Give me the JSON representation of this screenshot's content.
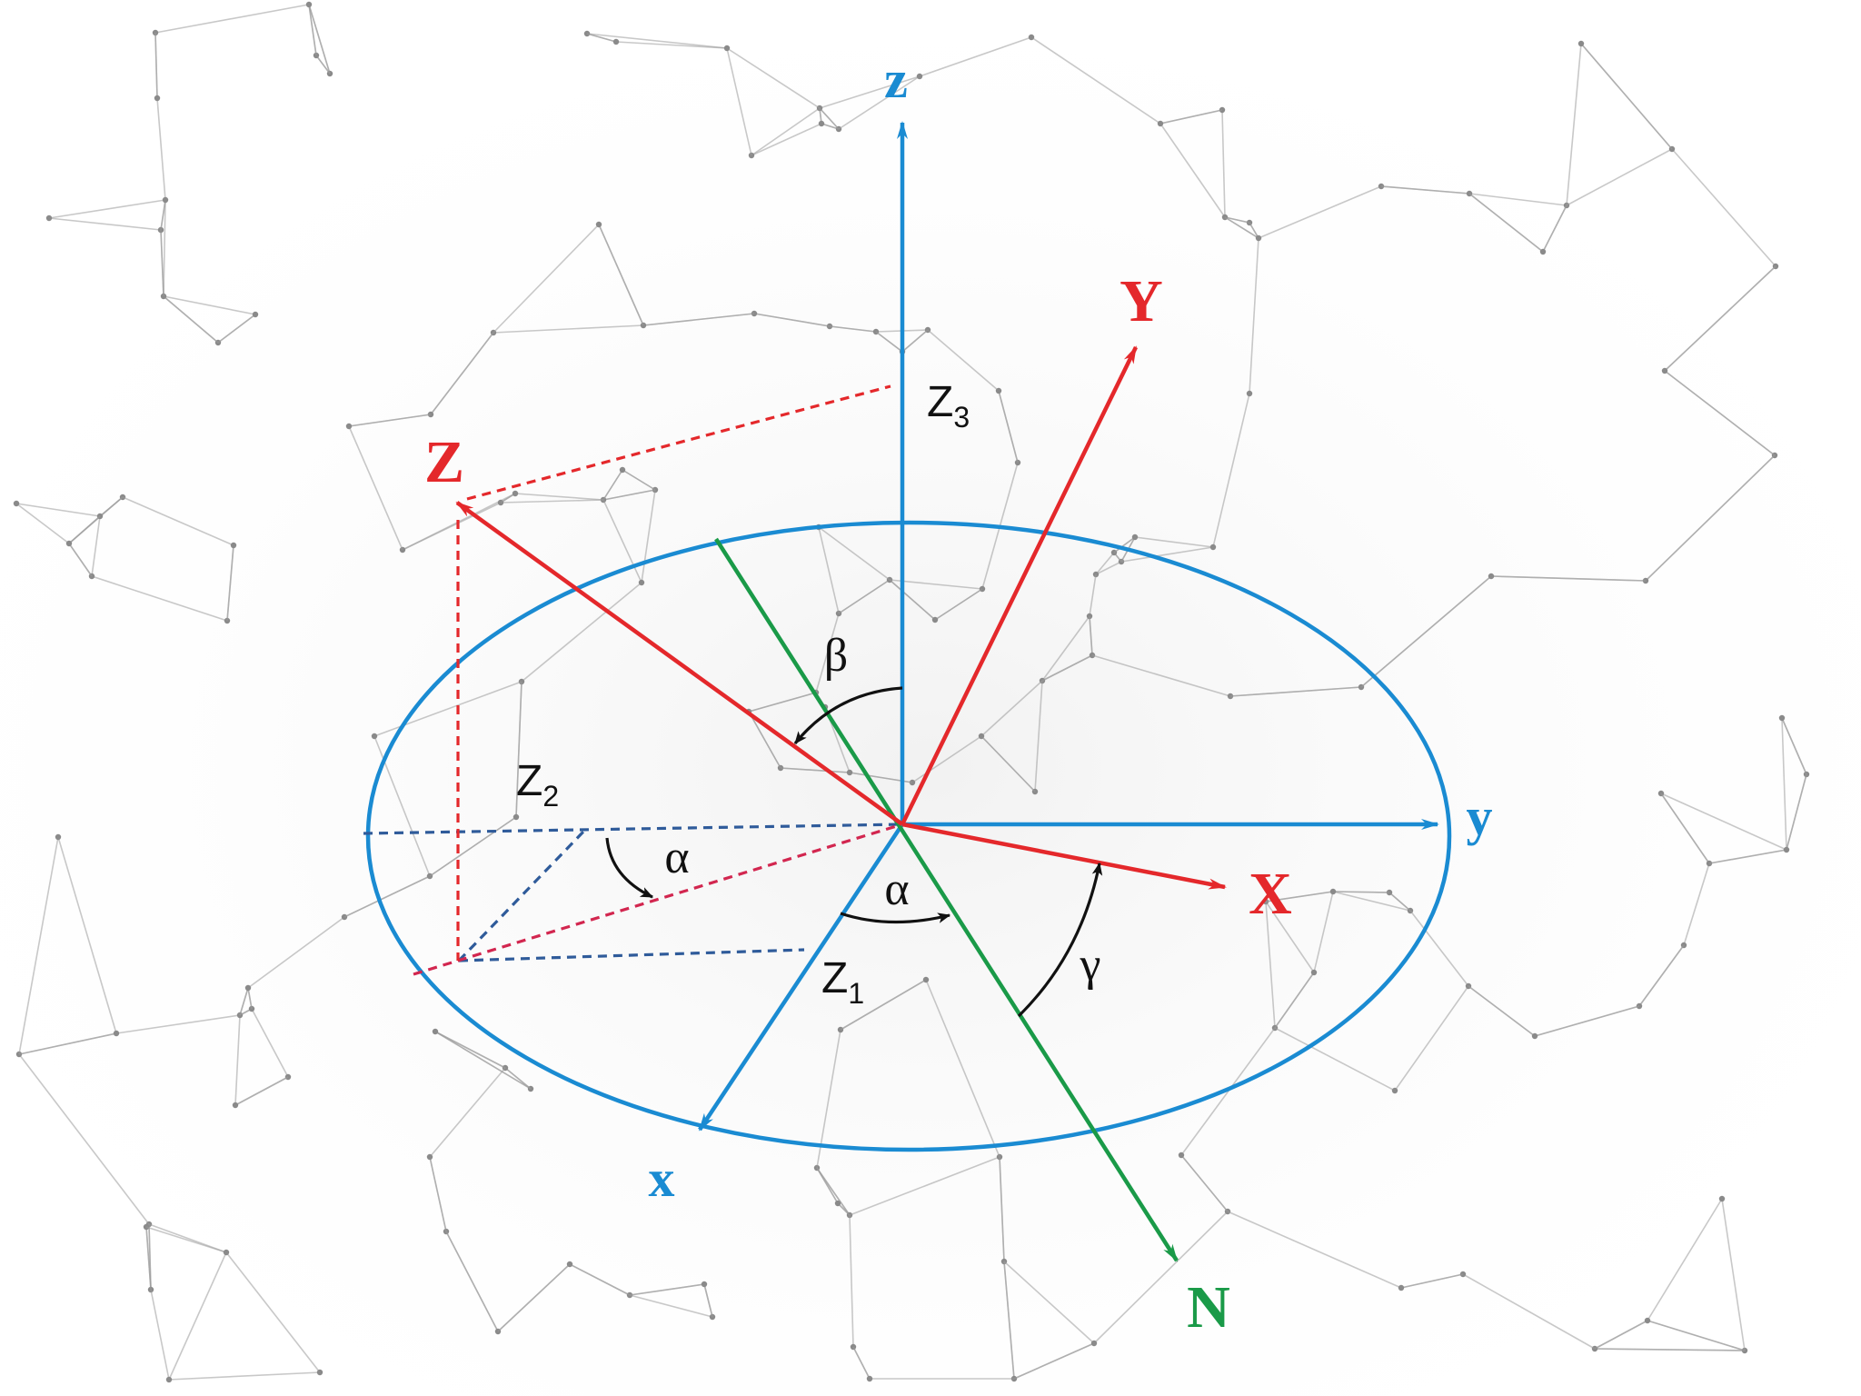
{
  "colors": {
    "fixed_frame": "#1a8bd2",
    "rotated_frame": "#e4282b",
    "node_line": "#1a9a48",
    "projection_blue": "#2f5b9a",
    "projection_red": "#d2264f",
    "angle_arrow": "#111111",
    "network": "#9a9a9a"
  },
  "labels": {
    "fixed_z": "z",
    "fixed_y": "y",
    "fixed_x": "x",
    "rot_Z": "Z",
    "rot_Y": "Y",
    "rot_X": "X",
    "node_N": "N",
    "proj_Z1": "Z",
    "proj_Z1_sub": "1",
    "proj_Z2": "Z",
    "proj_Z2_sub": "2",
    "proj_Z3": "Z",
    "proj_Z3_sub": "3",
    "angle_alpha_1": "α",
    "angle_alpha_2": "α",
    "angle_beta": "β",
    "angle_gamma": "γ"
  }
}
